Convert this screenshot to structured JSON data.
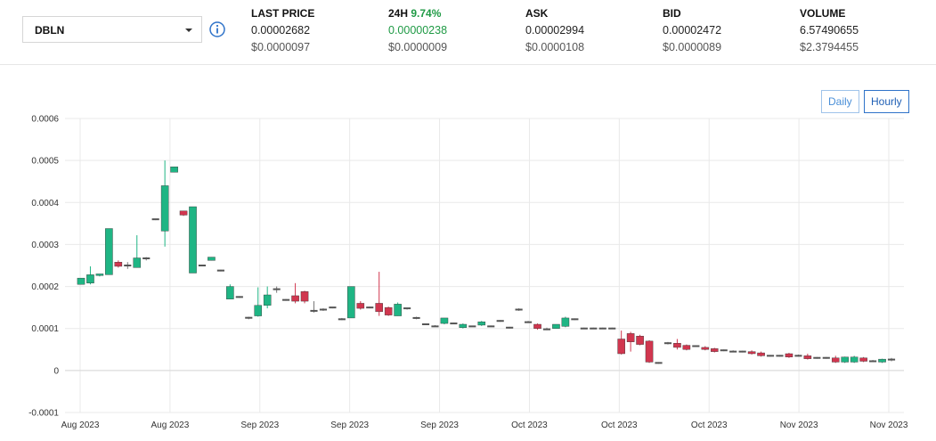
{
  "pair": {
    "symbol": "DBLN"
  },
  "stats": [
    {
      "label": "LAST PRICE",
      "change": "",
      "value": "0.00002682",
      "usd": "$0.0000097",
      "up": false
    },
    {
      "label": "24H",
      "change": "9.74%",
      "value": "0.00000238",
      "usd": "$0.0000009",
      "up": true
    },
    {
      "label": "ASK",
      "change": "",
      "value": "0.00002994",
      "usd": "$0.0000108",
      "up": false
    },
    {
      "label": "BID",
      "change": "",
      "value": "0.00002472",
      "usd": "$0.0000089",
      "up": false
    },
    {
      "label": "VOLUME",
      "change": "",
      "value": "6.57490655",
      "usd": "$2.3794455",
      "up": false
    }
  ],
  "timeframe": {
    "daily_label": "Daily",
    "hourly_label": "Hourly",
    "selected": "Hourly"
  },
  "colors": {
    "up": "#1fb584",
    "down": "#d1364f",
    "flat": "#555555",
    "accent": "#1f9a45",
    "info": "#2f73c9"
  },
  "icons": {
    "info": "info-icon",
    "dropdown": "chevron-down-icon"
  },
  "chart_data": {
    "type": "candlestick",
    "ylim": [
      -0.0001,
      0.0006
    ],
    "y_ticks": [
      "0.0006",
      "0.0005",
      "0.0004",
      "0.0003",
      "0.0002",
      "0.0001",
      "0",
      "-0.0001"
    ],
    "x_ticks": [
      "Aug 2023",
      "Aug 2023",
      "Sep 2023",
      "Sep 2023",
      "Sep 2023",
      "Oct 2023",
      "Oct 2023",
      "Oct 2023",
      "Nov 2023",
      "Nov 2023"
    ],
    "grid": true,
    "candles": [
      [
        0.000205,
        0.00022,
        0.00022,
        0.000205
      ],
      [
        0.000208,
        0.000248,
        0.000228,
        0.000205
      ],
      [
        0.000226,
        0.00023,
        0.00023,
        0.000224
      ],
      [
        0.000228,
        0.000338,
        0.000338,
        0.000228
      ],
      [
        0.000258,
        0.000262,
        0.000248,
        0.000245
      ],
      [
        0.00025,
        0.000258,
        0.00025,
        0.000242
      ],
      [
        0.000245,
        0.000322,
        0.000268,
        0.000245
      ],
      [
        0.000267,
        0.00027,
        0.000267,
        0.000262
      ],
      [
        0.00036,
        0.00036,
        0.00036,
        0.000358
      ],
      [
        0.000332,
        0.0005,
        0.00044,
        0.000295
      ],
      [
        0.000472,
        0.000485,
        0.000485,
        0.000472
      ],
      [
        0.00038,
        0.00038,
        0.00037,
        0.000368
      ],
      [
        0.000232,
        0.00039,
        0.00039,
        0.000232
      ],
      [
        0.00025,
        0.00025,
        0.00025,
        0.000248
      ],
      [
        0.000262,
        0.00027,
        0.00027,
        0.000262
      ],
      [
        0.000238,
        0.00024,
        0.000238,
        0.000236
      ],
      [
        0.00017,
        0.000205,
        0.0002,
        0.00017
      ],
      [
        0.000175,
        0.000177,
        0.000175,
        0.000173
      ],
      [
        0.000125,
        0.000128,
        0.000126,
        0.000122
      ],
      [
        0.00013,
        0.000198,
        0.000155,
        0.000128
      ],
      [
        0.000155,
        0.0002,
        0.00018,
        0.000148
      ],
      [
        0.000192,
        0.0002,
        0.000195,
        0.000185
      ],
      [
        0.000168,
        0.00017,
        0.000168,
        0.000166
      ],
      [
        0.000178,
        0.000208,
        0.000165,
        0.00016
      ],
      [
        0.000188,
        0.00019,
        0.000165,
        0.00016
      ],
      [
        0.000142,
        0.000165,
        0.000142,
        0.000138
      ],
      [
        0.000145,
        0.000148,
        0.000145,
        0.000142
      ],
      [
        0.00015,
        0.00015,
        0.00015,
        0.000148
      ],
      [
        0.000122,
        0.000125,
        0.000122,
        0.00012
      ],
      [
        0.000125,
        0.0002,
        0.0002,
        0.000125
      ],
      [
        0.00016,
        0.000165,
        0.000148,
        0.000145
      ],
      [
        0.00015,
        0.000152,
        0.00015,
        0.000148
      ],
      [
        0.00016,
        0.000235,
        0.00014,
        0.00013
      ],
      [
        0.00015,
        0.000152,
        0.000132,
        0.00013
      ],
      [
        0.00013,
        0.000162,
        0.000158,
        0.00013
      ],
      [
        0.000148,
        0.000148,
        0.000148,
        0.000145
      ],
      [
        0.000125,
        0.000128,
        0.000125,
        0.000122
      ],
      [
        0.00011,
        0.000112,
        0.00011,
        0.000108
      ],
      [
        0.000105,
        0.000108,
        0.000105,
        0.000104
      ],
      [
        0.000112,
        0.000125,
        0.000125,
        0.00011
      ],
      [
        0.000112,
        0.000114,
        0.000112,
        0.00011
      ],
      [
        0.000102,
        0.000112,
        0.00011,
        0.0001
      ],
      [
        0.000105,
        0.000106,
        0.000105,
        0.000104
      ],
      [
        0.000108,
        0.000118,
        0.000116,
        0.000106
      ],
      [
        0.000105,
        0.000107,
        0.000105,
        0.000104
      ],
      [
        0.000118,
        0.00012,
        0.000118,
        0.000116
      ],
      [
        0.000102,
        0.000104,
        0.000102,
        0.0001
      ],
      [
        0.000145,
        0.000148,
        0.000145,
        0.000142
      ],
      [
        0.000115,
        0.000118,
        0.000115,
        0.000113
      ],
      [
        0.00011,
        0.000112,
        0.0001,
        9.7e-05
      ],
      [
        9.8e-05,
        0.000102,
        9.8e-05,
        9.6e-05
      ],
      [
        0.0001,
        0.00011,
        0.00011,
        0.0001
      ],
      [
        0.000105,
        0.000128,
        0.000125,
        0.000103
      ],
      [
        0.000122,
        0.000124,
        0.000122,
        0.00012
      ],
      [
        0.0001,
        0.000102,
        0.0001,
        9.9e-05
      ],
      [
        0.0001,
        0.000102,
        0.0001,
        9.9e-05
      ],
      [
        0.0001,
        0.000102,
        0.0001,
        9.9e-05
      ],
      [
        0.0001,
        0.000102,
        0.0001,
        9.9e-05
      ],
      [
        7.5e-05,
        9.5e-05,
        4e-05,
        3.8e-05
      ],
      [
        8.8e-05,
        9.2e-05,
        6.8e-05,
        4.5e-05
      ],
      [
        8.2e-05,
        8.5e-05,
        6.2e-05,
        6e-05
      ],
      [
        7e-05,
        7.2e-05,
        2e-05,
        1.8e-05
      ],
      [
        1.8e-05,
        2e-05,
        1.8e-05,
        1.6e-05
      ],
      [
        6.5e-05,
        6.8e-05,
        6.5e-05,
        6.2e-05
      ],
      [
        6.5e-05,
        7.5e-05,
        5.5e-05,
        5e-05
      ],
      [
        6e-05,
        6.2e-05,
        5e-05,
        4.8e-05
      ],
      [
        5.8e-05,
        6e-05,
        5.8e-05,
        5.6e-05
      ],
      [
        5.5e-05,
        5.8e-05,
        5e-05,
        4.8e-05
      ],
      [
        5.2e-05,
        5.4e-05,
        4.5e-05,
        4.3e-05
      ],
      [
        4.8e-05,
        5e-05,
        4.8e-05,
        4.6e-05
      ],
      [
        4.5e-05,
        4.8e-05,
        4.5e-05,
        4.4e-05
      ],
      [
        4.5e-05,
        4.7e-05,
        4.5e-05,
        4.3e-05
      ],
      [
        4.5e-05,
        4.8e-05,
        4e-05,
        3.8e-05
      ],
      [
        4.2e-05,
        4.5e-05,
        3.5e-05,
        3.3e-05
      ],
      [
        3.5e-05,
        3.7e-05,
        3.5e-05,
        3.3e-05
      ],
      [
        3.5e-05,
        3.7e-05,
        3.5e-05,
        3.3e-05
      ],
      [
        4e-05,
        4.2e-05,
        3.2e-05,
        3e-05
      ],
      [
        3.5e-05,
        3.8e-05,
        3.5e-05,
        3.3e-05
      ],
      [
        3.5e-05,
        4e-05,
        2.8e-05,
        2.6e-05
      ],
      [
        3e-05,
        3.2e-05,
        3e-05,
        2.8e-05
      ],
      [
        3e-05,
        3.2e-05,
        3e-05,
        2.8e-05
      ],
      [
        3e-05,
        3.5e-05,
        2e-05,
        1.8e-05
      ],
      [
        2e-05,
        3.3e-05,
        3.2e-05,
        1.8e-05
      ],
      [
        2e-05,
        3.5e-05,
        3.2e-05,
        1.8e-05
      ],
      [
        3e-05,
        3.2e-05,
        2.2e-05,
        2e-05
      ],
      [
        2.2e-05,
        2.5e-05,
        2.2e-05,
        2e-05
      ],
      [
        2e-05,
        2.8e-05,
        2.7e-05,
        1.8e-05
      ],
      [
        2.8e-05,
        3e-05,
        2.4e-05,
        2.2e-05
      ]
    ]
  }
}
